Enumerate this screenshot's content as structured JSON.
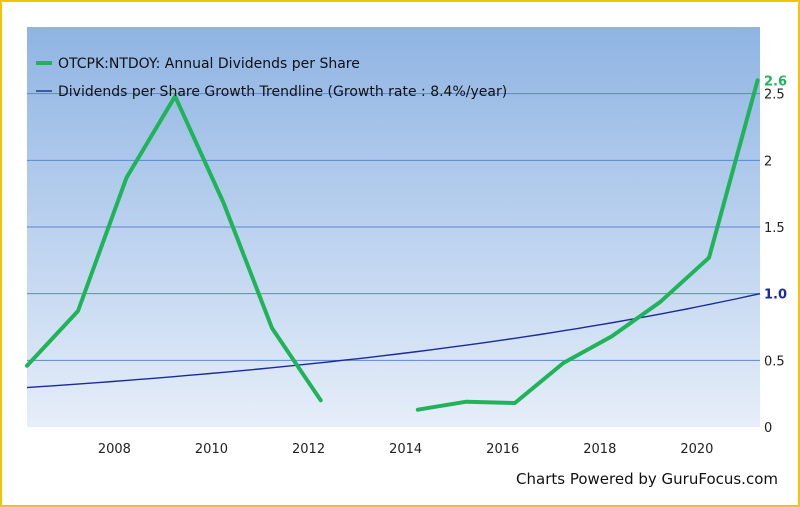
{
  "colors": {
    "frame": "#f2c500",
    "plot_top": "#8fb4e3",
    "plot_bottom": "#e6eef9",
    "grid": "#5b86d6",
    "dividends": "#1fb35a",
    "trendline": "#1b2a9c",
    "tick_text": "#222222"
  },
  "chart_data": {
    "type": "line",
    "title": "",
    "xlabel": "",
    "ylabel": "",
    "xlim": [
      2006.2,
      2021.3
    ],
    "ylim": [
      0,
      3.0
    ],
    "x_ticks": [
      2008,
      2010,
      2012,
      2014,
      2016,
      2018,
      2020
    ],
    "x_tick_labels": [
      "2008",
      "2010",
      "2012",
      "2014",
      "2016",
      "2018",
      "2020"
    ],
    "y_ticks": [
      0,
      0.5,
      1,
      1.5,
      2,
      2.5
    ],
    "y_tick_labels": [
      "0",
      "0.5",
      "1",
      "1.5",
      "2",
      "2.5"
    ],
    "grid": true,
    "legend_position": "top-left",
    "series": [
      {
        "name": "OTCPK:NTDOY: Annual Dividends per Share",
        "color": "#1fb35a",
        "segments": [
          {
            "x": [
              2006.2,
              2007.25,
              2008.25,
              2009.25,
              2010.25,
              2011.25,
              2012.25
            ],
            "y": [
              0.46,
              0.87,
              1.87,
              2.48,
              1.68,
              0.74,
              0.2
            ]
          },
          {
            "x": [
              2014.25,
              2015.25,
              2016.25,
              2017.25,
              2018.25,
              2019.25,
              2020.25,
              2021.25
            ],
            "y": [
              0.13,
              0.19,
              0.18,
              0.48,
              0.68,
              0.94,
              1.27,
              2.6
            ]
          }
        ],
        "end_label": "2.6"
      },
      {
        "name": "Dividends per Share Growth Trendline (Growth rate : 8.4%/year)",
        "color": "#1b2a9c",
        "growth_rate": 0.084,
        "x": [
          2006.2,
          2021.3
        ],
        "y_end": 1.0,
        "end_label": "1.0"
      }
    ]
  },
  "footer": {
    "credit": "Charts Powered by GuruFocus.com"
  }
}
